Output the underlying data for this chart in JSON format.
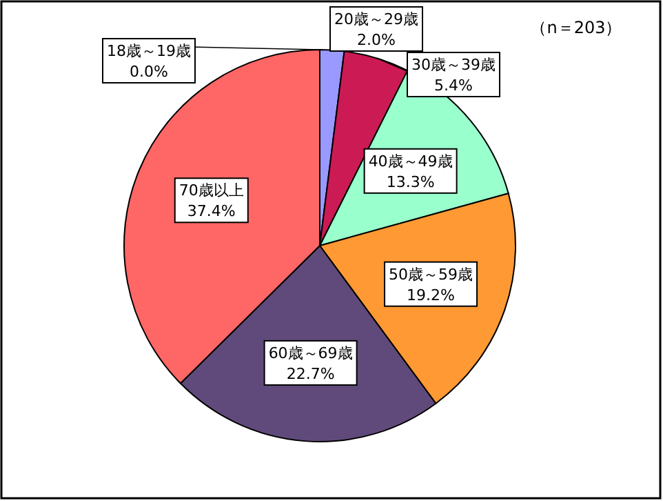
{
  "chart_data": {
    "type": "pie",
    "categories": [
      "18歳～19歳",
      "20歳～29歳",
      "30歳～39歳",
      "40歳～49歳",
      "50歳～59歳",
      "60歳～69歳",
      "70歳以上"
    ],
    "values": [
      0.0,
      2.0,
      5.4,
      13.3,
      19.2,
      22.7,
      37.4
    ],
    "colors": [
      "#3366cc",
      "#9999ff",
      "#cc1a55",
      "#99ffcc",
      "#ff9933",
      "#604a7b",
      "#ff6666"
    ],
    "value_labels": [
      "0.0%",
      "2.0%",
      "5.4%",
      "13.3%",
      "19.2%",
      "22.7%",
      "37.4%"
    ],
    "annotations": [
      "（n＝203）"
    ]
  }
}
